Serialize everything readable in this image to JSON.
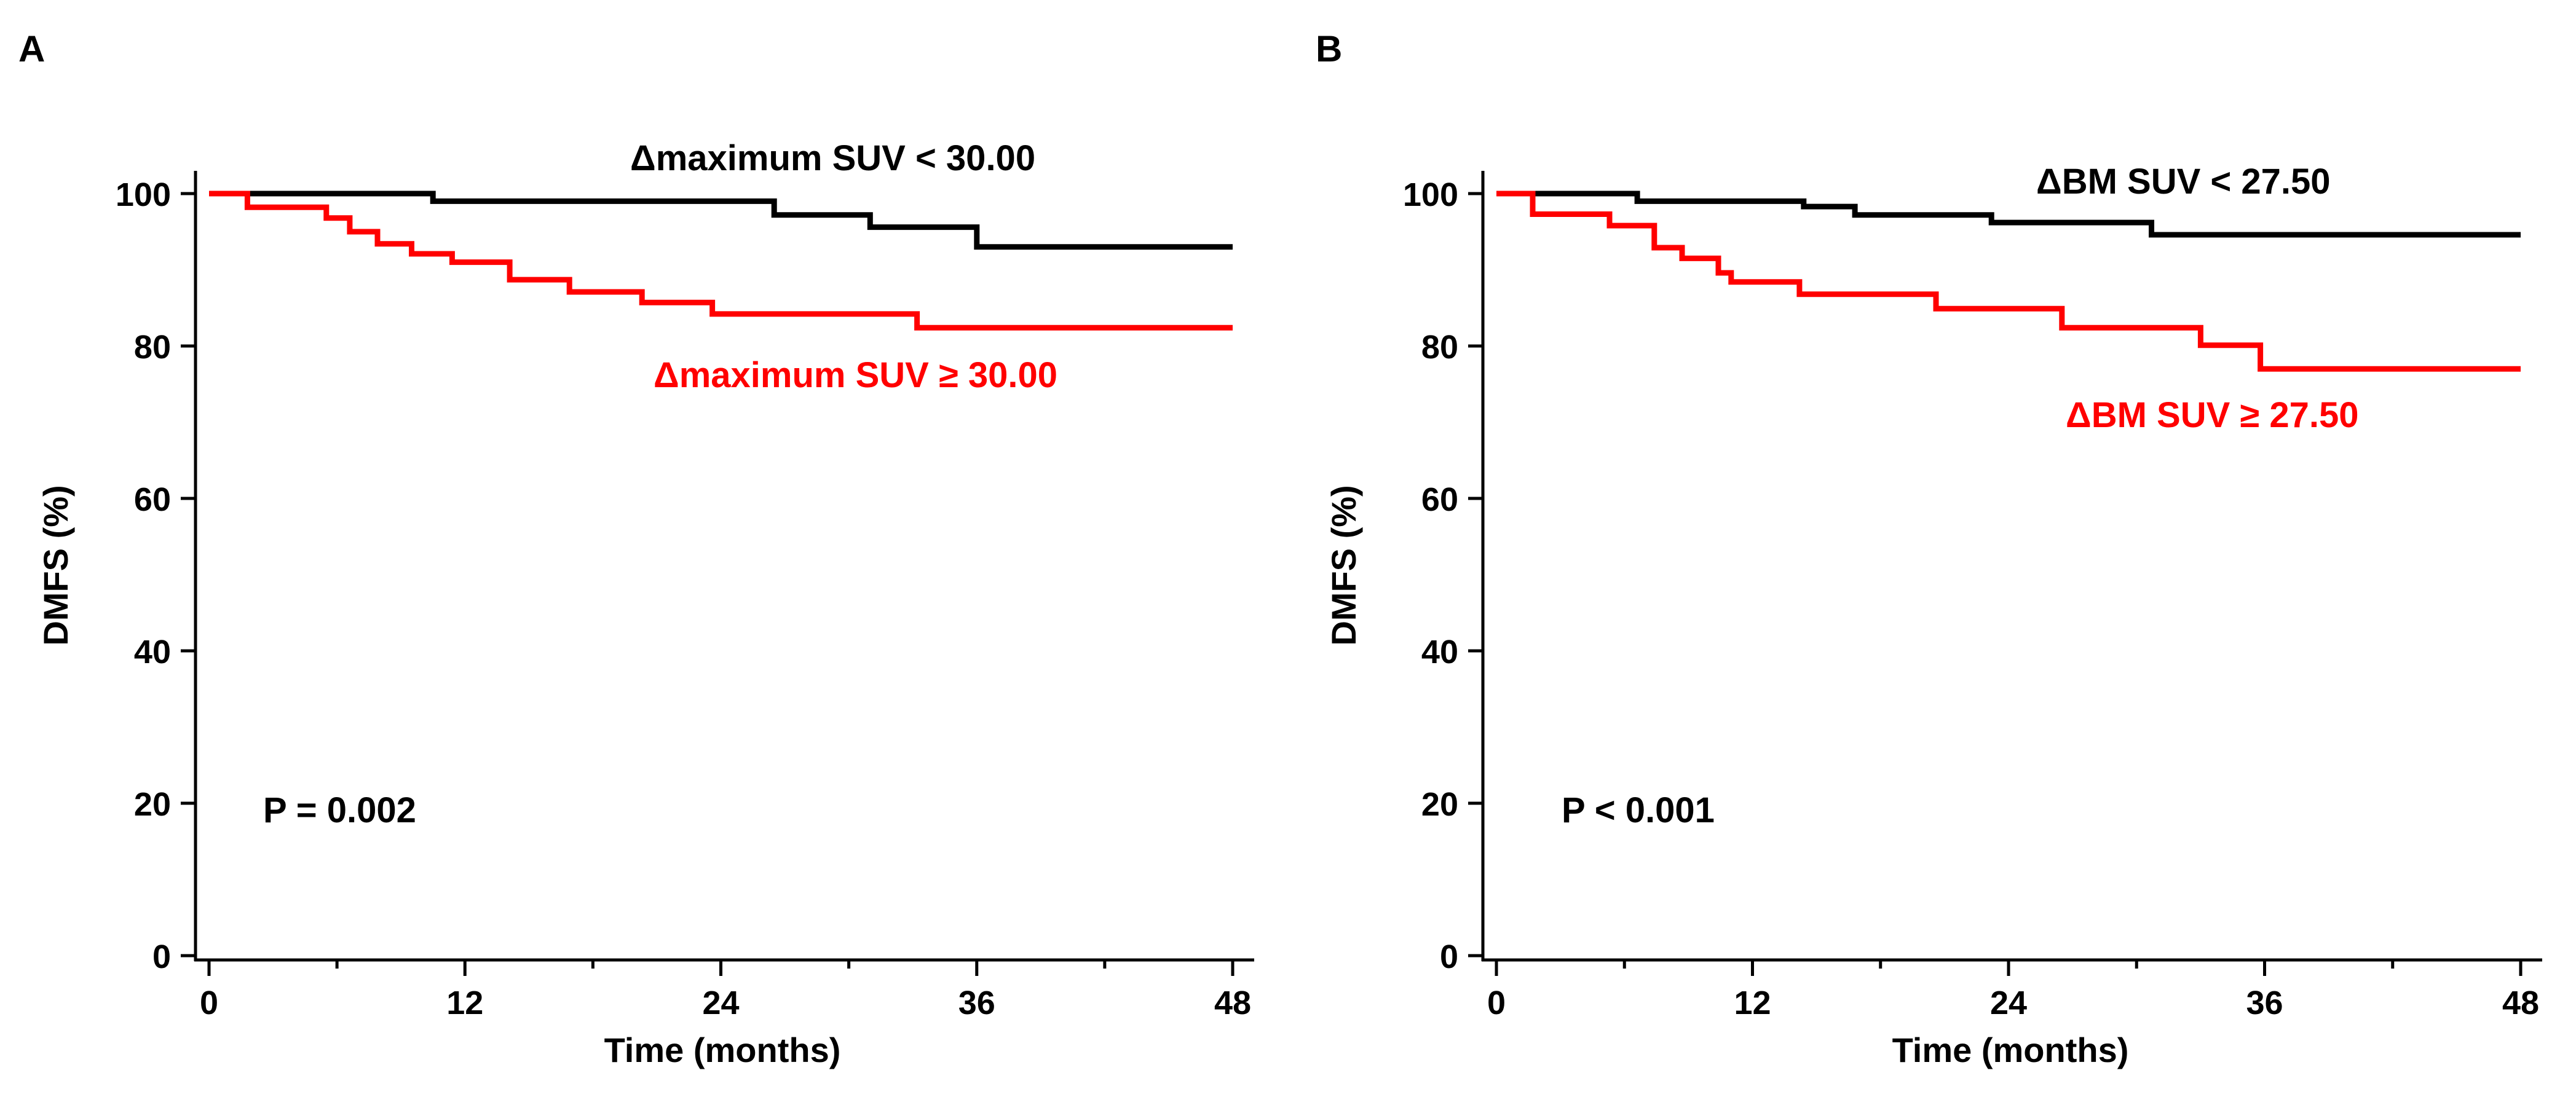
{
  "chart_data": [
    {
      "panel_label": "A",
      "type": "line",
      "step": true,
      "xlabel": "Time (months)",
      "ylabel": "DMFS (%)",
      "xlim": [
        0,
        48
      ],
      "ylim": [
        0,
        100
      ],
      "xticks": [
        0,
        12,
        24,
        36,
        48
      ],
      "yticks": [
        0,
        20,
        40,
        60,
        80,
        100
      ],
      "grid": false,
      "annotation": "P = 0.002",
      "series": [
        {
          "name": "Δmaximum SUV < 30.00",
          "color": "#000000",
          "x": [
            0,
            10.5,
            26.5,
            31,
            36,
            48
          ],
          "y": [
            100,
            99,
            97.2,
            95.6,
            93,
            93
          ]
        },
        {
          "name": "Δmaximum SUV ≥ 30.00",
          "color": "#ff0000",
          "x": [
            0,
            1.8,
            5.5,
            6.6,
            7.9,
            9.5,
            11.4,
            14.1,
            16.9,
            20.3,
            23.6,
            33.2,
            48
          ],
          "y": [
            100,
            98.2,
            96.8,
            95,
            93.4,
            92.1,
            91,
            88.7,
            87.1,
            85.7,
            84.2,
            82.4,
            82.4
          ]
        }
      ]
    },
    {
      "panel_label": "B",
      "type": "line",
      "step": true,
      "xlabel": "Time (months)",
      "ylabel": "DMFS (%)",
      "xlim": [
        0,
        48
      ],
      "ylim": [
        0,
        100
      ],
      "xticks": [
        0,
        12,
        24,
        36,
        48
      ],
      "yticks": [
        0,
        20,
        40,
        60,
        80,
        100
      ],
      "grid": false,
      "annotation": "P < 0.001",
      "series": [
        {
          "name": "ΔBM SUV < 27.50",
          "color": "#000000",
          "x": [
            0,
            6.6,
            14.4,
            16.8,
            23.2,
            30.7,
            48
          ],
          "y": [
            100,
            99,
            98.3,
            97.2,
            96.2,
            94.6,
            94.6
          ]
        },
        {
          "name": "ΔBM SUV ≥ 27.50",
          "color": "#ff0000",
          "x": [
            0,
            1.7,
            3.7,
            5.3,
            7.4,
            8.7,
            10.4,
            11.0,
            14.2,
            20.6,
            26.5,
            33.0,
            35.8,
            48
          ],
          "y": [
            100,
            97.3,
            97.3,
            95.8,
            92.9,
            91.5,
            89.6,
            88.4,
            86.8,
            84.9,
            82.4,
            80.1,
            77,
            77
          ]
        }
      ]
    }
  ]
}
